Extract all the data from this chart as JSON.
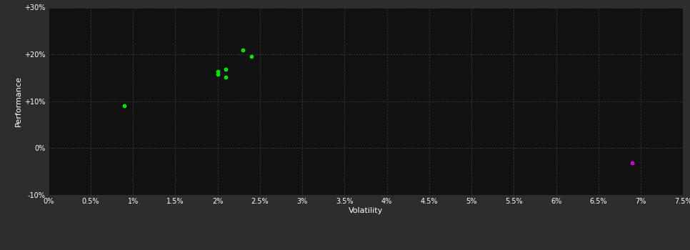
{
  "background_color": "#2d2d2d",
  "plot_bg_color": "#111111",
  "grid_color": "#3a3a3a",
  "text_color": "#ffffff",
  "xlabel": "Volatility",
  "ylabel": "Performance",
  "xlim": [
    0.0,
    0.075
  ],
  "ylim": [
    -0.1,
    0.3
  ],
  "xtick_vals": [
    0.0,
    0.005,
    0.01,
    0.015,
    0.02,
    0.025,
    0.03,
    0.035,
    0.04,
    0.045,
    0.05,
    0.055,
    0.06,
    0.065,
    0.07,
    0.075
  ],
  "xtick_labels": [
    "0%",
    "0.5%",
    "1%",
    "1.5%",
    "2%",
    "2.5%",
    "3%",
    "3.5%",
    "4%",
    "4.5%",
    "5%",
    "5.5%",
    "6%",
    "6.5%",
    "7%",
    "7.5%"
  ],
  "ytick_vals": [
    -0.1,
    0.0,
    0.1,
    0.2,
    0.3
  ],
  "ytick_labels": [
    "-10%",
    "0%",
    "+10%",
    "+20%",
    "+30%"
  ],
  "green_points": [
    [
      0.009,
      0.09
    ],
    [
      0.02,
      0.163
    ],
    [
      0.02,
      0.157
    ],
    [
      0.021,
      0.152
    ],
    [
      0.021,
      0.168
    ],
    [
      0.023,
      0.21
    ],
    [
      0.024,
      0.195
    ]
  ],
  "magenta_points": [
    [
      0.069,
      -0.032
    ]
  ],
  "green_color": "#00dd00",
  "magenta_color": "#cc00cc",
  "point_size": 18,
  "figsize": [
    9.66,
    3.5
  ],
  "dpi": 100
}
